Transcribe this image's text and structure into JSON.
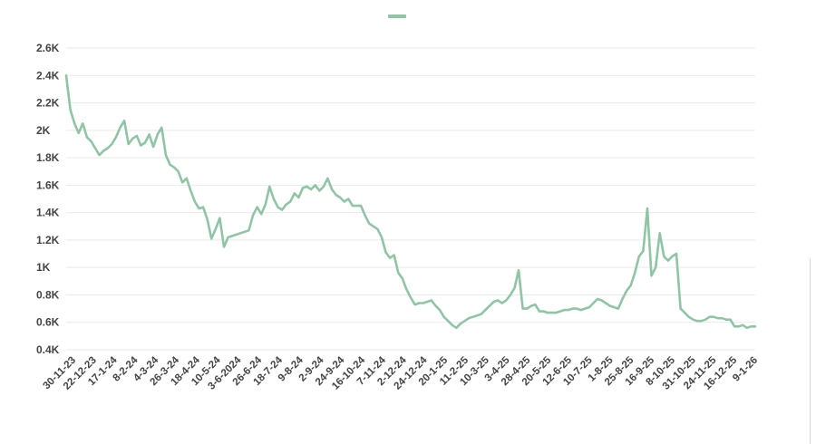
{
  "colors": {
    "line": "#8fc4a5",
    "grid": "#e9e9e9",
    "tick_text": "#444444"
  },
  "chart_data": {
    "type": "line",
    "title": "",
    "xlabel": "",
    "ylabel": "",
    "grid": true,
    "legend": "top-center",
    "ylim": [
      400,
      2600
    ],
    "y_ticks": [
      "0.4K",
      "0.6K",
      "0.8K",
      "1K",
      "1.2K",
      "1.4K",
      "1.6K",
      "1.8K",
      "2K",
      "2.2K",
      "2.4K",
      "2.6K"
    ],
    "y_tick_values": [
      400,
      600,
      800,
      1000,
      1200,
      1400,
      1600,
      1800,
      2000,
      2200,
      2400,
      2600
    ],
    "x_ticks": [
      "30-11-23",
      "22-12-23",
      "17-1-24",
      "8-2-24",
      "4-3-24",
      "26-3-24",
      "18-4-24",
      "10-5-24",
      "3-6-2024",
      "26-6-24",
      "18-7-24",
      "9-8-24",
      "2-9-24",
      "24-9-24",
      "16-10-24",
      "7-11-24",
      "2-12-24",
      "24-12-24",
      "20-1-25",
      "11-2-25",
      "10-3-25",
      "3-4-25",
      "28-4-25",
      "20-5-25",
      "12-6-25",
      "10-7-25",
      "1-8-25",
      "25-8-25",
      "16-9-25",
      "8-10-25",
      "31-10-25",
      "24-11-25",
      "16-12-25",
      "9-1-26"
    ],
    "series": [
      {
        "name": "",
        "color": "#8fc4a5",
        "values": [
          2400,
          2150,
          2050,
          1980,
          2050,
          1950,
          1920,
          1870,
          1820,
          1850,
          1870,
          1900,
          1950,
          2020,
          2070,
          1900,
          1940,
          1960,
          1890,
          1910,
          1970,
          1880,
          1970,
          2020,
          1820,
          1750,
          1730,
          1700,
          1620,
          1650,
          1560,
          1480,
          1430,
          1440,
          1350,
          1210,
          1280,
          1360,
          1150,
          1220,
          1230,
          1240,
          1250,
          1260,
          1270,
          1380,
          1440,
          1390,
          1460,
          1590,
          1500,
          1440,
          1420,
          1460,
          1480,
          1540,
          1510,
          1580,
          1590,
          1570,
          1600,
          1560,
          1590,
          1650,
          1570,
          1530,
          1510,
          1480,
          1500,
          1450,
          1450,
          1450,
          1380,
          1320,
          1300,
          1280,
          1220,
          1110,
          1070,
          1090,
          960,
          920,
          840,
          780,
          730,
          740,
          740,
          750,
          760,
          720,
          690,
          640,
          610,
          580,
          560,
          590,
          610,
          630,
          640,
          650,
          660,
          690,
          720,
          750,
          760,
          740,
          760,
          800,
          850,
          980,
          700,
          700,
          720,
          730,
          680,
          680,
          670,
          670,
          670,
          680,
          690,
          690,
          700,
          700,
          690,
          700,
          710,
          740,
          770,
          760,
          740,
          720,
          710,
          700,
          770,
          830,
          870,
          960,
          1080,
          1120,
          1430,
          940,
          1000,
          1250,
          1080,
          1050,
          1080,
          1100,
          700,
          670,
          640,
          620,
          610,
          610,
          620,
          640,
          640,
          630,
          630,
          620,
          620,
          570,
          570,
          580,
          560,
          570,
          570
        ]
      }
    ]
  }
}
